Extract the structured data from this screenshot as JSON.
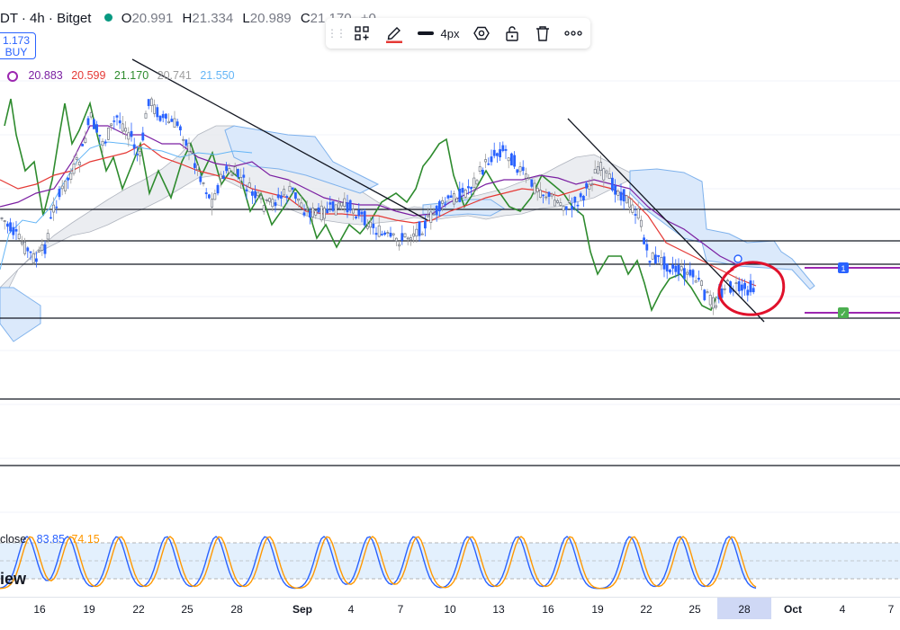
{
  "header": {
    "symbol": "DT · 4h · Bitget",
    "ohlc": [
      {
        "k": "O",
        "v": "20.991"
      },
      {
        "k": "H",
        "v": "21.334"
      },
      {
        "k": "L",
        "v": "20.989"
      },
      {
        "k": "C",
        "v": "21.170"
      }
    ],
    "change": "+0."
  },
  "price_box": {
    "price": "1.173",
    "side": "BUY"
  },
  "indicator": {
    "values": [
      "20.883",
      "20.599",
      "21.170",
      "20.741",
      "21.550"
    ],
    "colors": [
      "#7b1fa2",
      "#e53935",
      "#2e8b2e",
      "#9e9e9e",
      "#64b5f6"
    ]
  },
  "toolbar": {
    "items": [
      {
        "name": "drag-handle",
        "glyph": "⋮⋮"
      },
      {
        "name": "add-object-icon",
        "glyph": ""
      },
      {
        "name": "pencil-icon",
        "glyph": ""
      },
      {
        "name": "line-width-button",
        "label": "4px"
      },
      {
        "name": "settings-icon",
        "glyph": ""
      },
      {
        "name": "lock-icon",
        "glyph": ""
      },
      {
        "name": "trash-icon",
        "glyph": ""
      },
      {
        "name": "more-icon",
        "glyph": "∘∘∘"
      }
    ],
    "accent": "#e53935"
  },
  "oscillator": {
    "label": "close",
    "k": "83.85",
    "d": "74.15",
    "k_color": "#2962ff",
    "d_color": "#ff9800"
  },
  "watermark": "iew",
  "axis": {
    "ticks": [
      {
        "label": "16",
        "bold": false
      },
      {
        "label": "19",
        "bold": false
      },
      {
        "label": "22",
        "bold": false
      },
      {
        "label": "25",
        "bold": false
      },
      {
        "label": "28",
        "bold": false
      },
      {
        "label": "Sep",
        "bold": true
      },
      {
        "label": "4",
        "bold": false
      },
      {
        "label": "7",
        "bold": false
      },
      {
        "label": "10",
        "bold": false
      },
      {
        "label": "13",
        "bold": false
      },
      {
        "label": "16",
        "bold": false
      },
      {
        "label": "19",
        "bold": false
      },
      {
        "label": "22",
        "bold": false
      },
      {
        "label": "25",
        "bold": false
      },
      {
        "label": "28",
        "bold": false
      },
      {
        "label": "Oct",
        "bold": true
      },
      {
        "label": "4",
        "bold": false
      },
      {
        "label": "7",
        "bold": false
      }
    ]
  },
  "markers": [
    {
      "label": "1",
      "color": "#2962ff"
    },
    {
      "label": "✓",
      "color": "#4caf50"
    }
  ]
}
